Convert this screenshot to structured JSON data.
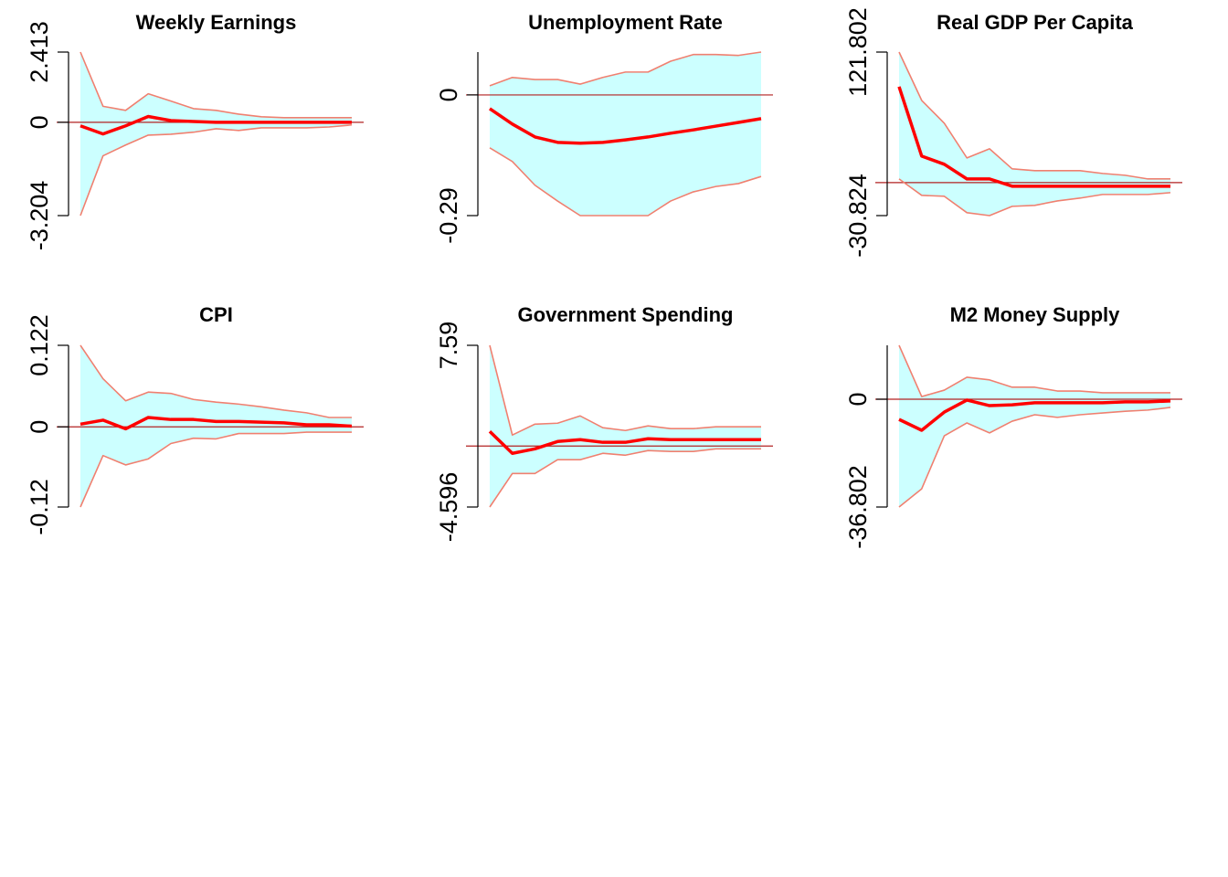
{
  "chart_data": [
    {
      "type": "band-line",
      "title": "Weekly Earnings",
      "x": [
        0,
        1,
        2,
        3,
        4,
        5,
        6,
        7,
        8,
        9,
        10,
        11,
        12
      ],
      "xlim": [
        0,
        12
      ],
      "values": [
        -0.12,
        -0.4,
        -0.12,
        0.2,
        0.06,
        0.03,
        0,
        0,
        0,
        0,
        0,
        0,
        0
      ],
      "lower": [
        -3.204,
        -1.15,
        -0.78,
        -0.44,
        -0.41,
        -0.34,
        -0.22,
        -0.28,
        -0.19,
        -0.19,
        -0.19,
        -0.16,
        -0.09
      ],
      "upper": [
        2.413,
        0.55,
        0.41,
        0.98,
        0.73,
        0.47,
        0.41,
        0.28,
        0.19,
        0.16,
        0.16,
        0.16,
        0.16
      ],
      "ylim": [
        -3.204,
        2.413
      ],
      "yticks": [
        -3.204,
        0,
        2.413
      ],
      "hline": 0,
      "color": "#ff0000",
      "band_color": "#ccffff",
      "band_edge_color": "#f08070"
    },
    {
      "type": "band-line",
      "title": "Unemployment Rate",
      "x": [
        0,
        1,
        2,
        3,
        4,
        5,
        6,
        7,
        8,
        9,
        10,
        11,
        12
      ],
      "xlim": [
        0,
        12
      ],
      "values": [
        -0.033,
        -0.07,
        -0.101,
        -0.114,
        -0.116,
        -0.114,
        -0.108,
        -0.101,
        -0.092,
        -0.084,
        -0.075,
        -0.066,
        -0.057
      ],
      "lower": [
        -0.127,
        -0.16,
        -0.217,
        -0.255,
        -0.29,
        -0.29,
        -0.29,
        -0.29,
        -0.255,
        -0.233,
        -0.22,
        -0.213,
        -0.196
      ],
      "upper": [
        0.022,
        0.042,
        0.037,
        0.037,
        0.026,
        0.042,
        0.055,
        0.055,
        0.081,
        0.097,
        0.097,
        0.095,
        0.103
      ],
      "ylim": [
        -0.29,
        0.103
      ],
      "yticks": [
        -0.29,
        0
      ],
      "hline": 0,
      "color": "#ff0000",
      "band_color": "#ccffff",
      "band_edge_color": "#f08070"
    },
    {
      "type": "band-line",
      "title": "Real GDP Per Capita",
      "x": [
        0,
        1,
        2,
        3,
        4,
        5,
        6,
        7,
        8,
        9,
        10,
        11,
        12
      ],
      "xlim": [
        0,
        12
      ],
      "values": [
        89.5,
        24.7,
        17.1,
        3.4,
        3.4,
        -3.4,
        -3.4,
        -3.4,
        -3.4,
        -3.4,
        -3.4,
        -3.4,
        -3.4
      ],
      "lower": [
        3.4,
        -11.9,
        -12.8,
        -28.1,
        -30.824,
        -22.2,
        -21.3,
        -17.1,
        -14.5,
        -11.1,
        -11.1,
        -11.1,
        -9.4
      ],
      "upper": [
        121.802,
        76.7,
        55.4,
        23,
        31.5,
        12.8,
        11.1,
        11.1,
        11.1,
        8.5,
        6.8,
        3.4,
        3.4
      ],
      "ylim": [
        -30.824,
        121.802
      ],
      "yticks": [
        -30.824,
        121.802
      ],
      "hline": 0,
      "color": "#ff0000",
      "band_color": "#ccffff",
      "band_edge_color": "#f08070"
    },
    {
      "type": "band-line",
      "title": "CPI",
      "x": [
        0,
        1,
        2,
        3,
        4,
        5,
        6,
        7,
        8,
        9,
        10,
        11,
        12
      ],
      "xlim": [
        0,
        12
      ],
      "values": [
        0.004,
        0.01,
        -0.003,
        0.014,
        0.011,
        0.011,
        0.008,
        0.008,
        0.007,
        0.006,
        0.003,
        0.003,
        0.001
      ],
      "lower": [
        -0.12,
        -0.043,
        -0.057,
        -0.048,
        -0.025,
        -0.017,
        -0.018,
        -0.01,
        -0.01,
        -0.01,
        -0.008,
        -0.008,
        -0.008
      ],
      "upper": [
        0.122,
        0.072,
        0.039,
        0.052,
        0.05,
        0.041,
        0.037,
        0.034,
        0.03,
        0.025,
        0.021,
        0.014,
        0.014
      ],
      "ylim": [
        -0.12,
        0.122
      ],
      "yticks": [
        -0.12,
        0,
        0.122
      ],
      "hline": 0,
      "color": "#ff0000",
      "band_color": "#ccffff",
      "band_edge_color": "#f08070"
    },
    {
      "type": "band-line",
      "title": "Government Spending",
      "x": [
        0,
        1,
        2,
        3,
        4,
        5,
        6,
        7,
        8,
        9,
        10,
        11,
        12
      ],
      "xlim": [
        0,
        12
      ],
      "values": [
        1.1,
        -0.55,
        -0.21,
        0.34,
        0.48,
        0.28,
        0.28,
        0.55,
        0.48,
        0.48,
        0.48,
        0.48,
        0.48
      ],
      "lower": [
        -4.596,
        -2.07,
        -2.07,
        -1.03,
        -1.03,
        -0.55,
        -0.69,
        -0.34,
        -0.41,
        -0.41,
        -0.21,
        -0.21,
        -0.21
      ],
      "upper": [
        7.59,
        0.83,
        1.65,
        1.72,
        2.27,
        1.38,
        1.17,
        1.52,
        1.31,
        1.31,
        1.45,
        1.45,
        1.45
      ],
      "ylim": [
        -4.596,
        7.59
      ],
      "yticks": [
        -4.596,
        7.59
      ],
      "hline": 0,
      "color": "#ff0000",
      "band_color": "#ccffff",
      "band_edge_color": "#f08070"
    },
    {
      "type": "band-line",
      "title": "M2 Money Supply",
      "x": [
        0,
        1,
        2,
        3,
        4,
        5,
        6,
        7,
        8,
        9,
        10,
        11,
        12
      ],
      "xlim": [
        0,
        12
      ],
      "values": [
        -6.9,
        -10.6,
        -4.4,
        -0.3,
        -2.2,
        -1.9,
        -1.2,
        -1.2,
        -1.2,
        -1.2,
        -0.9,
        -0.9,
        -0.6
      ],
      "lower": [
        -36.802,
        -30.6,
        -12.5,
        -8.1,
        -11.5,
        -7.5,
        -5.3,
        -6.2,
        -5.3,
        -4.7,
        -4.1,
        -3.7,
        -2.8
      ],
      "upper": [
        18.4,
        0.9,
        3.1,
        7.5,
        6.6,
        4.1,
        4.1,
        2.8,
        2.8,
        2.2,
        2.2,
        2.2,
        2.2
      ],
      "ylim": [
        -36.802,
        18.4
      ],
      "yticks": [
        -36.802,
        0
      ],
      "hline": 0,
      "color": "#ff0000",
      "band_color": "#ccffff",
      "band_edge_color": "#f08070"
    }
  ]
}
